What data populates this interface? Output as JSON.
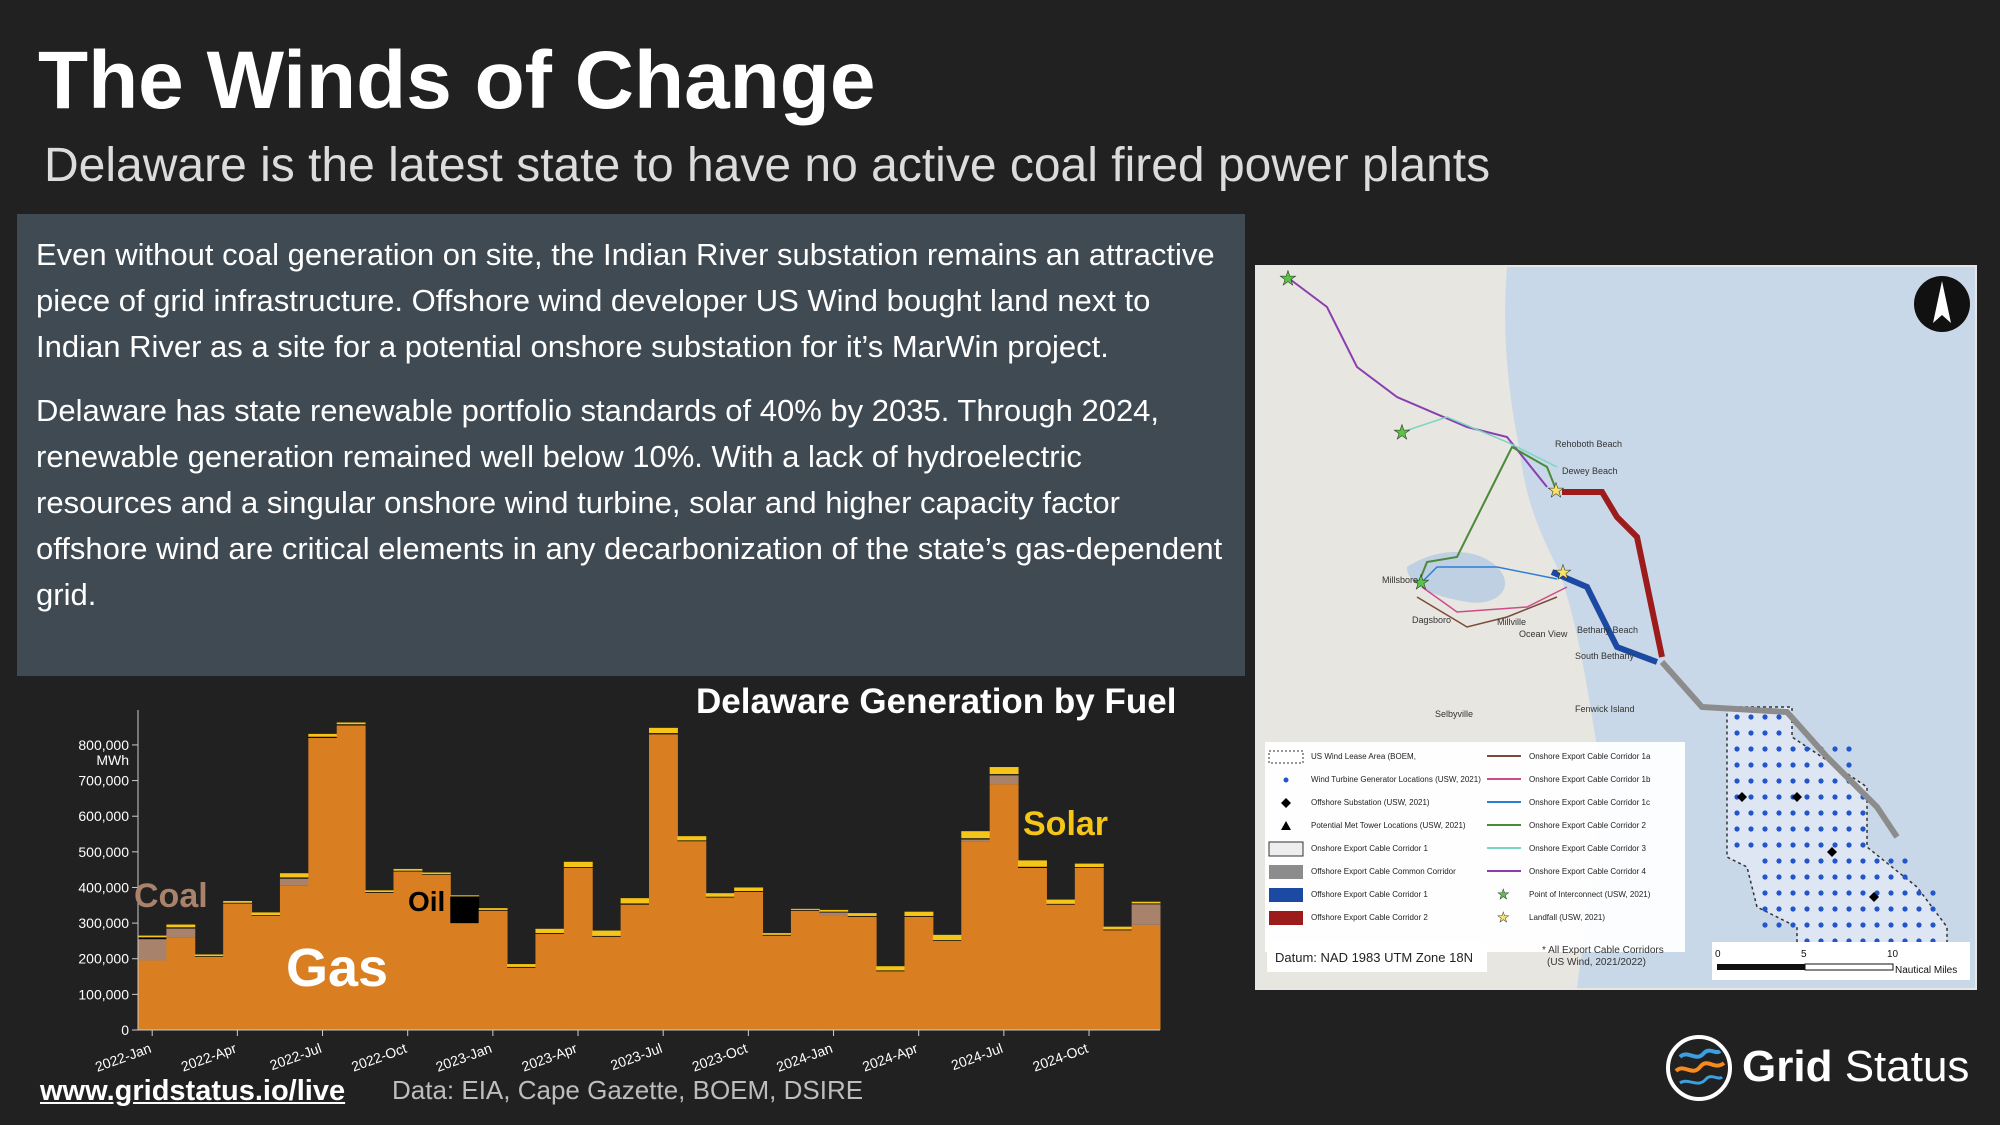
{
  "header": {
    "title": "The Winds of Change",
    "subtitle": "Delaware is the latest state to have no active coal fired power plants"
  },
  "textbox": {
    "paragraph1": "Even without coal generation on site, the Indian River substation remains an attractive piece of grid infrastructure. Offshore wind developer US Wind bought land next to Indian River as a site for a potential onshore substation for it’s MarWin project.",
    "paragraph2": "Delaware has state renewable portfolio standards of 40% by 2035. Through 2024, renewable generation remained well below 10%. With a lack of hydroelectric resources and a singular onshore wind turbine, solar and higher capacity factor offshore wind are critical elements in any decarbonization of the state’s gas-dependent grid."
  },
  "chart_data": {
    "type": "bar",
    "stacked": true,
    "title": "Delaware Generation by Fuel",
    "ylabel": "MWh",
    "ylim": [
      0,
      870000
    ],
    "yticks": [
      0,
      100000,
      200000,
      300000,
      400000,
      500000,
      600000,
      700000,
      800000
    ],
    "ytick_labels": [
      "0",
      "100,000",
      "200,000",
      "300,000",
      "400,000",
      "500,000",
      "600,000",
      "700,000",
      "800,000"
    ],
    "xtick_labels": [
      "2022-Jan",
      "2022-Apr",
      "2022-Jul",
      "2022-Oct",
      "2023-Jan",
      "2023-Apr",
      "2023-Jul",
      "2023-Oct",
      "2024-Jan",
      "2024-Apr",
      "2024-Jul",
      "2024-Oct"
    ],
    "categories": [
      "2022-Jan",
      "2022-Feb",
      "2022-Mar",
      "2022-Apr",
      "2022-May",
      "2022-Jun",
      "2022-Jul",
      "2022-Aug",
      "2022-Sep",
      "2022-Oct",
      "2022-Nov",
      "2022-Dec",
      "2023-Jan",
      "2023-Feb",
      "2023-Mar",
      "2023-Apr",
      "2023-May",
      "2023-Jun",
      "2023-Jul",
      "2023-Aug",
      "2023-Sep",
      "2023-Oct",
      "2023-Nov",
      "2023-Dec",
      "2024-Jan",
      "2024-Feb",
      "2024-Mar",
      "2024-Apr",
      "2024-May",
      "2024-Jun",
      "2024-Jul",
      "2024-Aug",
      "2024-Sep",
      "2024-Oct",
      "2024-Nov",
      "2024-Dec"
    ],
    "series": [
      {
        "name": "Gas",
        "color": "#d97f22",
        "values": [
          195000,
          260000,
          205000,
          355000,
          320000,
          405000,
          820000,
          855000,
          385000,
          445000,
          435000,
          300000,
          335000,
          175000,
          270000,
          455000,
          262000,
          352000,
          830000,
          530000,
          372000,
          388000,
          265000,
          335000,
          320000,
          318000,
          165000,
          318000,
          250000,
          530000,
          690000,
          455000,
          352000,
          455000,
          280000,
          295000
        ]
      },
      {
        "name": "Coal",
        "color": "#a8826a",
        "values": [
          60000,
          25000,
          0,
          0,
          0,
          20000,
          0,
          0,
          0,
          0,
          0,
          0,
          0,
          0,
          0,
          0,
          0,
          0,
          0,
          0,
          0,
          0,
          0,
          0,
          10000,
          0,
          0,
          0,
          0,
          5000,
          25000,
          0,
          0,
          0,
          0,
          58000
        ]
      },
      {
        "name": "Oil",
        "color": "#000000",
        "values": [
          5000,
          3000,
          2000,
          2000,
          2000,
          3000,
          3000,
          3000,
          2000,
          2000,
          2000,
          75000,
          2000,
          2000,
          2000,
          2000,
          2000,
          3000,
          3000,
          2000,
          2000,
          2000,
          2000,
          2000,
          2000,
          2000,
          2000,
          2000,
          2000,
          3000,
          3000,
          3000,
          2000,
          2000,
          2000,
          2000
        ]
      },
      {
        "name": "Solar",
        "color": "#f5c518",
        "values": [
          5000,
          8000,
          5000,
          5000,
          8000,
          12000,
          8000,
          5000,
          5000,
          5000,
          5000,
          3000,
          5000,
          8000,
          12000,
          15000,
          15000,
          15000,
          15000,
          12000,
          10000,
          10000,
          5000,
          3000,
          5000,
          8000,
          12000,
          12000,
          15000,
          20000,
          20000,
          18000,
          12000,
          10000,
          8000,
          5000
        ]
      }
    ],
    "series_labels": {
      "coal": "Coal",
      "gas": "Gas",
      "oil": "Oil",
      "solar": "Solar"
    }
  },
  "map": {
    "towns": [
      "Rehoboth Beach",
      "Dewey Beach",
      "Millsboro",
      "Dagsboro",
      "Millville",
      "Ocean View",
      "Bethany Beach",
      "South Bethany",
      "Fenwick Island",
      "Selbyville"
    ],
    "legend_left": [
      "US Wind Lease Area (BOEM,",
      "Wind Turbine Generator Locations (USW, 2021)",
      "Offshore Substation (USW, 2021)",
      "Potential Met Tower Locations (USW, 2021)",
      "Onshore Export Cable Corridor 1",
      "Offshore Export Cable Common Corridor",
      "Offshore Export Cable Corridor 1",
      "Offshore Export Cable Corridor 2"
    ],
    "legend_right": [
      "Onshore Export Cable Corridor 1a",
      "Onshore Export Cable Corridor 1b",
      "Onshore Export Cable Corridor 1c",
      "Onshore Export Cable Corridor 2",
      "Onshore Export Cable Corridor 3",
      "Onshore Export Cable Corridor 4",
      "Point of Interconnect (USW, 2021)",
      "Landfall (USW, 2021)"
    ],
    "datum": "Datum: NAD 1983 UTM Zone 18N",
    "note_line1": "* All Export Cable Corridors",
    "note_line2": "(US Wind, 2021/2022)",
    "scale_labels": [
      "0",
      "5",
      "10"
    ],
    "scale_unit": "Nautical Miles"
  },
  "footer": {
    "link": "www.gridstatus.io/live",
    "source": "Data: EIA, Cape Gazette, BOEM, DSIRE"
  },
  "logo": {
    "word1": "Grid",
    "word2": "Status"
  }
}
